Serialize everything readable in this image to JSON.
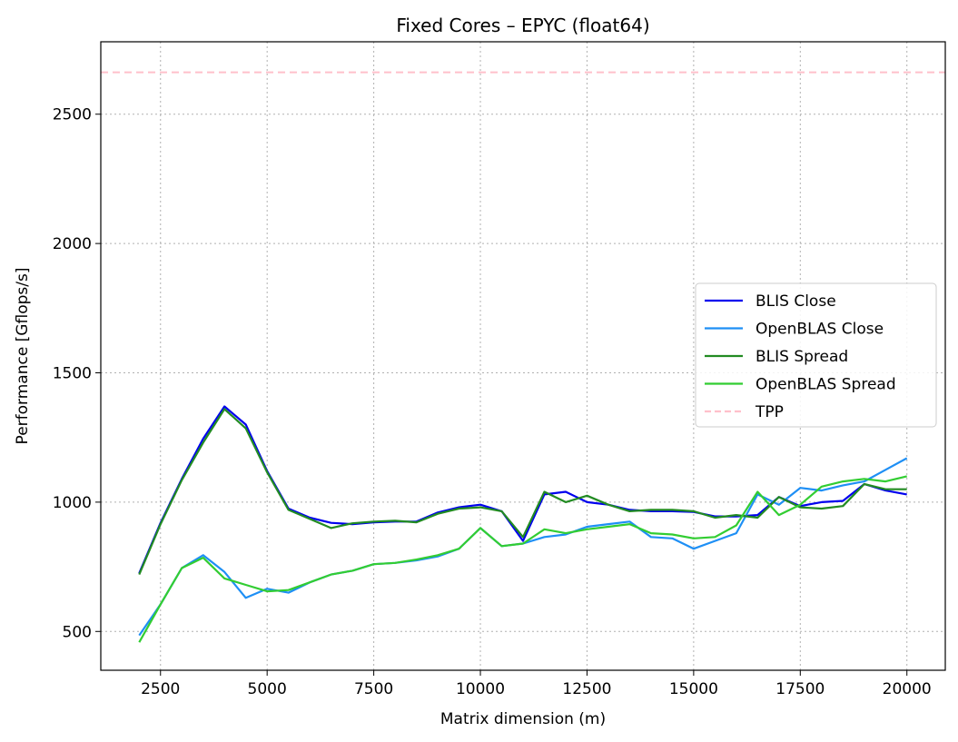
{
  "chart_data": {
    "type": "line",
    "title": "Fixed Cores – EPYC (float64)",
    "xlabel": "Matrix dimension (m)",
    "ylabel": "Performance [Gflops/s]",
    "xlim": [
      1100,
      20900
    ],
    "ylim": [
      350,
      2780
    ],
    "xticks": [
      2500,
      5000,
      7500,
      10000,
      12500,
      15000,
      17500,
      20000
    ],
    "yticks": [
      500,
      1000,
      1500,
      2000,
      2500
    ],
    "grid": true,
    "legend_position": "center-right",
    "x": [
      2000,
      2500,
      3000,
      3500,
      4000,
      4500,
      5000,
      5500,
      6000,
      6500,
      7000,
      7500,
      8000,
      8500,
      9000,
      9500,
      10000,
      10500,
      11000,
      11500,
      12000,
      12500,
      13000,
      13500,
      14000,
      14500,
      15000,
      15500,
      16000,
      16500,
      17000,
      17500,
      18000,
      18500,
      19000,
      19500,
      20000
    ],
    "series": [
      {
        "name": "BLIS Close",
        "color": "#0000ee",
        "values": [
          725,
          920,
          1090,
          1245,
          1370,
          1300,
          1120,
          975,
          940,
          920,
          915,
          922,
          925,
          925,
          960,
          980,
          990,
          965,
          850,
          1030,
          1040,
          1000,
          990,
          970,
          965,
          965,
          962,
          945,
          945,
          950,
          1020,
          985,
          1000,
          1005,
          1070,
          1045,
          1030
        ]
      },
      {
        "name": "OpenBLAS Close",
        "color": "#1e8ff5",
        "values": [
          485,
          605,
          745,
          795,
          730,
          630,
          665,
          650,
          690,
          720,
          735,
          760,
          765,
          775,
          790,
          820,
          900,
          830,
          840,
          865,
          875,
          905,
          915,
          925,
          865,
          860,
          820,
          850,
          880,
          1030,
          990,
          1055,
          1045,
          1065,
          1080,
          1125,
          1170
        ]
      },
      {
        "name": "BLIS Spread",
        "color": "#228b22",
        "values": [
          720,
          915,
          1085,
          1230,
          1360,
          1285,
          1115,
          970,
          935,
          900,
          918,
          925,
          928,
          922,
          955,
          975,
          980,
          965,
          865,
          1040,
          1000,
          1025,
          990,
          965,
          970,
          970,
          965,
          940,
          950,
          940,
          1020,
          980,
          975,
          985,
          1070,
          1050,
          1050
        ]
      },
      {
        "name": "OpenBLAS Spread",
        "color": "#32cd32",
        "values": [
          458,
          605,
          745,
          785,
          705,
          680,
          655,
          660,
          690,
          720,
          735,
          760,
          765,
          778,
          795,
          820,
          900,
          830,
          840,
          895,
          880,
          895,
          905,
          915,
          880,
          875,
          860,
          865,
          910,
          1040,
          950,
          990,
          1060,
          1080,
          1090,
          1080,
          1100
        ]
      }
    ],
    "reference_lines": [
      {
        "name": "TPP",
        "value": 2662,
        "color": "#ffc0cb",
        "style": "dashed"
      }
    ]
  }
}
